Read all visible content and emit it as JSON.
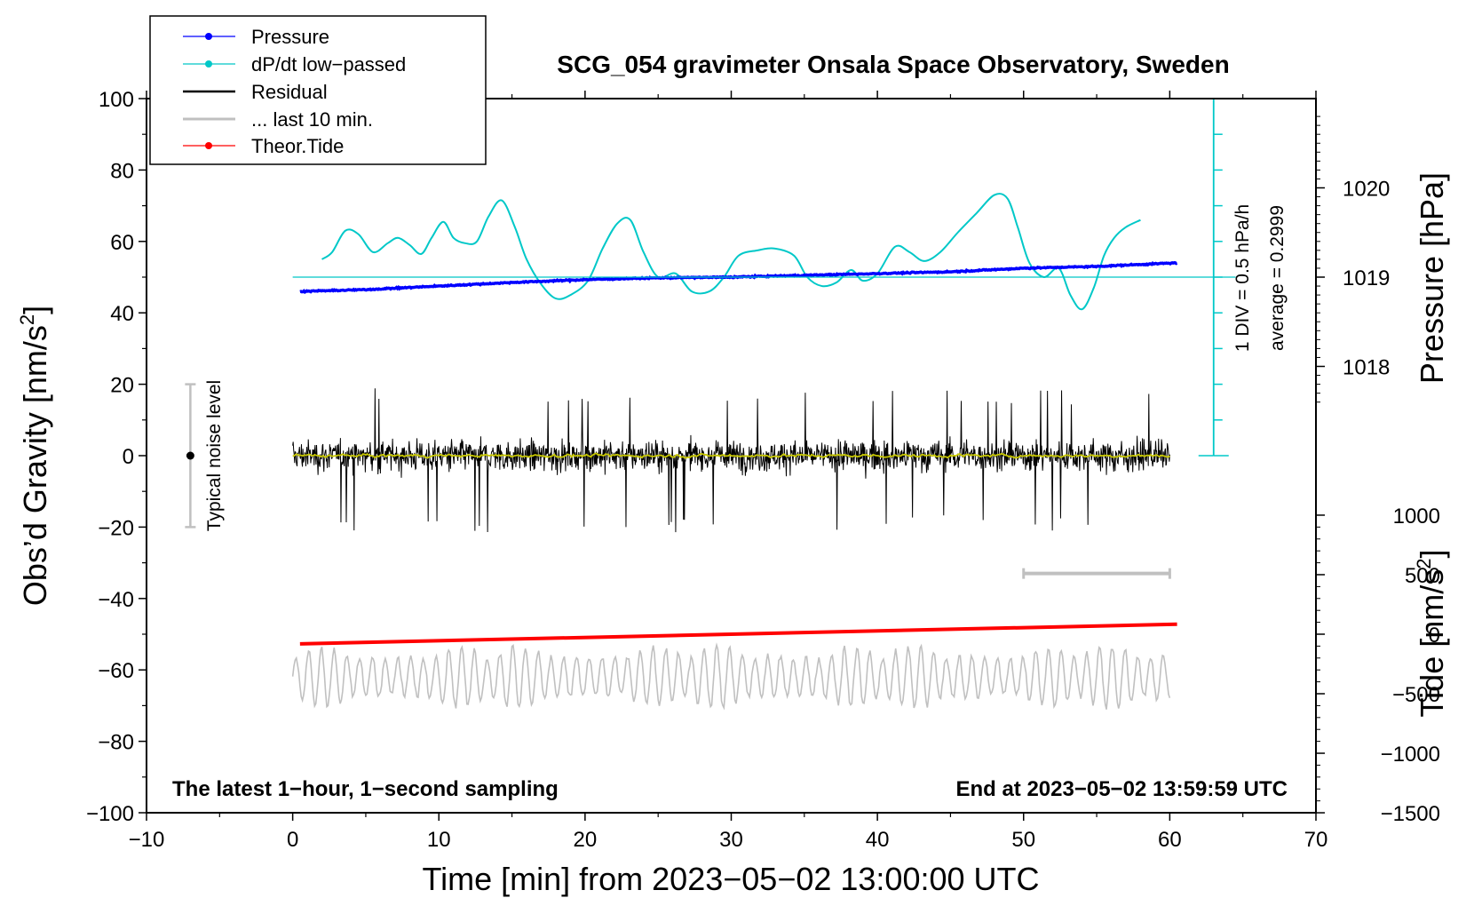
{
  "chart_data": {
    "type": "line",
    "title": "SCG_054 gravimeter Onsala Space Observatory, Sweden",
    "xlabel": "Time [min] from 2023−05−02 13:00:00 UTC",
    "ylabel_main": "Obs’d Gravity [nm/s",
    "ylabel_sup": "2",
    "ylabel_close": "]",
    "ylabel_pressure": "Pressure [hPa]",
    "ylabel_tide": "Tide [nm/s",
    "ylabel_tide_sup": "2",
    "ylabel_tide_close": "]",
    "xlim": [
      -10,
      70
    ],
    "ylim": [
      -100,
      100
    ],
    "x_ticks": [
      -10,
      0,
      10,
      20,
      30,
      40,
      50,
      60,
      70
    ],
    "x_tick_labels": [
      "−10",
      "0",
      "10",
      "20",
      "30",
      "40",
      "50",
      "60",
      "70"
    ],
    "y_ticks": [
      -100,
      -80,
      -60,
      -40,
      -20,
      0,
      20,
      40,
      60,
      80,
      100
    ],
    "y_tick_labels": [
      "−100",
      "−80",
      "−60",
      "−40",
      "−20",
      "0",
      "20",
      "40",
      "60",
      "80",
      "100"
    ],
    "pressure_axis": {
      "ticks": [
        1018,
        1019,
        1020
      ],
      "tick_labels": [
        "1018",
        "1019",
        "1020"
      ],
      "reference_gravity_at_1019": 50,
      "gravity_per_hPa": 25
    },
    "tide_axis": {
      "ticks": [
        1000,
        500,
        0,
        -500,
        -1000,
        -1500
      ],
      "tick_labels": [
        "1000",
        "500",
        "0",
        "−500",
        "−1000",
        "−1500"
      ],
      "gravity_at_zero": -50,
      "gravity_per_500": 16.67
    },
    "dpdt_scale": {
      "label": "1 DIV = 0.5 hPa/h",
      "average_label": "average = 0.2999",
      "x": 63,
      "y_from": 0,
      "y_to": 100,
      "baseline_y": 50
    },
    "noise_level": {
      "label": "Typical noise level",
      "x": -7,
      "center": 0,
      "low": -20,
      "high": 20
    },
    "last_10_min_bar": {
      "x_from": 50,
      "x_to": 60,
      "y": -33
    },
    "annotations": {
      "bottom_left": "The latest 1−hour, 1−second sampling",
      "bottom_right": "End at 2023−05−02 13:59:59 UTC"
    },
    "legend": [
      {
        "label": "Pressure",
        "color": "#0000ff",
        "marker": true
      },
      {
        "label": "dP/dt low−passed",
        "color": "#00c8c8",
        "marker": true
      },
      {
        "label": "Residual",
        "color": "#000000",
        "marker": false
      },
      {
        "label": "... last 10 min.",
        "color": "#c0c0c0",
        "marker": false
      },
      {
        "label": "Theor.Tide",
        "color": "#ff0000",
        "marker": true
      }
    ],
    "series": [
      {
        "name": "Pressure",
        "color": "#0000ff",
        "x": [
          0.5,
          5,
          10,
          15,
          20,
          25,
          30,
          35,
          40,
          45,
          50,
          55,
          60.5
        ],
        "y": [
          46,
          46.5,
          47.5,
          48.5,
          49.3,
          49.8,
          50,
          50.5,
          51,
          51.5,
          52.5,
          53,
          54
        ]
      },
      {
        "name": "dP/dt low−passed",
        "color": "#00c8c8",
        "x": [
          2,
          2.7,
          3.6,
          4.5,
          5.5,
          6.5,
          7.2,
          8.0,
          8.8,
          9.5,
          10.3,
          11.0,
          11.8,
          12.6,
          13.4,
          14.3,
          15.2,
          16.0,
          17.0,
          18.0,
          19.0,
          20.2,
          21.2,
          22.2,
          23.1,
          24.0,
          25.0,
          26.2,
          27.3,
          28.5,
          29.5,
          30.5,
          31.8,
          33.0,
          34.3,
          35.2,
          36.2,
          37.2,
          38.2,
          39.0,
          40.0,
          41.2,
          42.2,
          43.2,
          44.3,
          45.5,
          46.8,
          48.0,
          48.9,
          49.6,
          50.4,
          51.4,
          52.4,
          53.2,
          54.0,
          54.8,
          55.5,
          56.2,
          57.0,
          58.0
        ],
        "y": [
          55,
          57,
          63,
          62,
          57,
          59.5,
          61,
          59,
          56.5,
          61,
          65.5,
          61,
          59.5,
          60,
          67,
          71.5,
          64,
          55,
          48,
          44,
          45,
          49,
          58,
          65,
          66,
          57,
          50,
          51,
          46,
          46,
          50,
          56,
          57.5,
          58,
          56,
          50,
          47.5,
          48.5,
          52,
          49,
          51,
          58.5,
          57,
          54.5,
          57,
          62.5,
          68,
          73,
          72,
          64,
          54,
          50,
          52.5,
          45,
          41,
          47,
          56,
          61,
          64,
          66
        ]
      },
      {
        "name": "Residual",
        "color": "#000000",
        "x_range": [
          0,
          60
        ],
        "y_center": 0,
        "amplitude_nm_s2": 10,
        "extreme_low": -21.5,
        "extreme_high": 19
      },
      {
        "name": "Residual smoothed",
        "color": "#c8c800",
        "x_range": [
          0,
          60
        ],
        "y_center": 0,
        "amplitude_nm_s2": 1.5
      },
      {
        "name": "... last 10 min.",
        "color": "#c0c0c0",
        "x_range": [
          0,
          60
        ],
        "y_center": -62,
        "amplitude_nm_s2": 9,
        "extreme_low": -78,
        "extreme_high": -47
      },
      {
        "name": "Theor.Tide",
        "color": "#ff0000",
        "x": [
          0.5,
          60.5
        ],
        "y": [
          -52.7,
          -47.2
        ]
      }
    ]
  }
}
